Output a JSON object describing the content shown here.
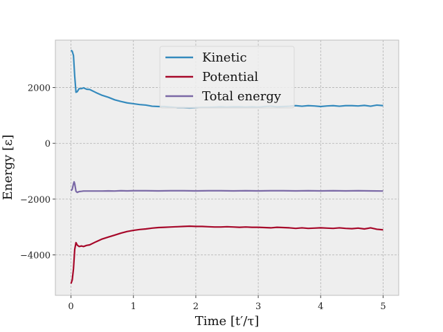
{
  "chart_data": {
    "type": "line",
    "title": "",
    "xlabel": "Time [t′/τ]",
    "ylabel": "Energy [ε]",
    "xlim": [
      -0.25,
      5.25
    ],
    "ylim": [
      -5450,
      3700
    ],
    "xticks": [
      0,
      1,
      2,
      3,
      4,
      5
    ],
    "xtick_labels": [
      "0",
      "1",
      "2",
      "3",
      "4",
      "5"
    ],
    "yticks": [
      -4000,
      -2000,
      0,
      2000
    ],
    "ytick_labels": [
      "−4000",
      "−2000",
      "0",
      "2000"
    ],
    "grid": true,
    "legend_position": "top-center",
    "background_color": "#eeeeee",
    "series": [
      {
        "name": "Kinetic",
        "color": "#348abd",
        "points": [
          [
            0,
            3340
          ],
          [
            0.02,
            3300
          ],
          [
            0.04,
            3150
          ],
          [
            0.06,
            2400
          ],
          [
            0.08,
            1830
          ],
          [
            0.1,
            1850
          ],
          [
            0.13,
            1960
          ],
          [
            0.17,
            1960
          ],
          [
            0.2,
            1990
          ],
          [
            0.25,
            1940
          ],
          [
            0.3,
            1930
          ],
          [
            0.4,
            1820
          ],
          [
            0.5,
            1720
          ],
          [
            0.6,
            1650
          ],
          [
            0.7,
            1560
          ],
          [
            0.8,
            1500
          ],
          [
            0.9,
            1450
          ],
          [
            1.0,
            1420
          ],
          [
            1.1,
            1390
          ],
          [
            1.2,
            1370
          ],
          [
            1.3,
            1330
          ],
          [
            1.4,
            1320
          ],
          [
            1.5,
            1320
          ],
          [
            1.6,
            1300
          ],
          [
            1.7,
            1280
          ],
          [
            1.8,
            1280
          ],
          [
            1.9,
            1270
          ],
          [
            2.0,
            1280
          ],
          [
            2.1,
            1290
          ],
          [
            2.2,
            1290
          ],
          [
            2.3,
            1300
          ],
          [
            2.4,
            1310
          ],
          [
            2.5,
            1300
          ],
          [
            2.6,
            1310
          ],
          [
            2.7,
            1310
          ],
          [
            2.8,
            1300
          ],
          [
            2.9,
            1310
          ],
          [
            3.0,
            1300
          ],
          [
            3.1,
            1320
          ],
          [
            3.2,
            1330
          ],
          [
            3.3,
            1310
          ],
          [
            3.4,
            1320
          ],
          [
            3.5,
            1330
          ],
          [
            3.6,
            1350
          ],
          [
            3.7,
            1330
          ],
          [
            3.8,
            1350
          ],
          [
            3.9,
            1340
          ],
          [
            4.0,
            1320
          ],
          [
            4.1,
            1340
          ],
          [
            4.2,
            1350
          ],
          [
            4.3,
            1330
          ],
          [
            4.4,
            1350
          ],
          [
            4.5,
            1350
          ],
          [
            4.6,
            1340
          ],
          [
            4.7,
            1360
          ],
          [
            4.8,
            1330
          ],
          [
            4.9,
            1370
          ],
          [
            5.0,
            1350
          ]
        ]
      },
      {
        "name": "Potential",
        "color": "#a60628",
        "points": [
          [
            0,
            -5030
          ],
          [
            0.02,
            -4900
          ],
          [
            0.04,
            -4500
          ],
          [
            0.06,
            -3800
          ],
          [
            0.08,
            -3560
          ],
          [
            0.1,
            -3650
          ],
          [
            0.13,
            -3700
          ],
          [
            0.17,
            -3680
          ],
          [
            0.2,
            -3700
          ],
          [
            0.25,
            -3660
          ],
          [
            0.3,
            -3640
          ],
          [
            0.4,
            -3530
          ],
          [
            0.5,
            -3430
          ],
          [
            0.6,
            -3360
          ],
          [
            0.7,
            -3290
          ],
          [
            0.8,
            -3220
          ],
          [
            0.9,
            -3160
          ],
          [
            1.0,
            -3120
          ],
          [
            1.1,
            -3090
          ],
          [
            1.2,
            -3070
          ],
          [
            1.3,
            -3040
          ],
          [
            1.4,
            -3020
          ],
          [
            1.5,
            -3010
          ],
          [
            1.6,
            -3000
          ],
          [
            1.7,
            -2990
          ],
          [
            1.8,
            -2980
          ],
          [
            1.9,
            -2970
          ],
          [
            2.0,
            -2980
          ],
          [
            2.1,
            -2980
          ],
          [
            2.2,
            -2990
          ],
          [
            2.3,
            -3000
          ],
          [
            2.4,
            -3000
          ],
          [
            2.5,
            -2990
          ],
          [
            2.6,
            -3000
          ],
          [
            2.7,
            -3010
          ],
          [
            2.8,
            -3000
          ],
          [
            2.9,
            -3010
          ],
          [
            3.0,
            -3010
          ],
          [
            3.1,
            -3020
          ],
          [
            3.2,
            -3030
          ],
          [
            3.3,
            -3010
          ],
          [
            3.4,
            -3020
          ],
          [
            3.5,
            -3030
          ],
          [
            3.6,
            -3050
          ],
          [
            3.7,
            -3030
          ],
          [
            3.8,
            -3050
          ],
          [
            3.9,
            -3040
          ],
          [
            4.0,
            -3030
          ],
          [
            4.1,
            -3040
          ],
          [
            4.2,
            -3050
          ],
          [
            4.3,
            -3030
          ],
          [
            4.4,
            -3050
          ],
          [
            4.5,
            -3060
          ],
          [
            4.6,
            -3040
          ],
          [
            4.7,
            -3070
          ],
          [
            4.8,
            -3030
          ],
          [
            4.9,
            -3080
          ],
          [
            5.0,
            -3100
          ]
        ]
      },
      {
        "name": "Total energy",
        "color": "#7a68a6",
        "points": [
          [
            0,
            -1700
          ],
          [
            0.02,
            -1650
          ],
          [
            0.04,
            -1450
          ],
          [
            0.05,
            -1380
          ],
          [
            0.06,
            -1450
          ],
          [
            0.08,
            -1720
          ],
          [
            0.1,
            -1760
          ],
          [
            0.13,
            -1730
          ],
          [
            0.17,
            -1720
          ],
          [
            0.2,
            -1710
          ],
          [
            0.3,
            -1710
          ],
          [
            0.4,
            -1710
          ],
          [
            0.5,
            -1710
          ],
          [
            0.6,
            -1705
          ],
          [
            0.7,
            -1710
          ],
          [
            0.8,
            -1700
          ],
          [
            0.9,
            -1705
          ],
          [
            1.0,
            -1700
          ],
          [
            1.2,
            -1700
          ],
          [
            1.4,
            -1705
          ],
          [
            1.6,
            -1700
          ],
          [
            1.8,
            -1700
          ],
          [
            2.0,
            -1705
          ],
          [
            2.2,
            -1700
          ],
          [
            2.4,
            -1700
          ],
          [
            2.6,
            -1705
          ],
          [
            2.8,
            -1700
          ],
          [
            3.0,
            -1705
          ],
          [
            3.2,
            -1700
          ],
          [
            3.4,
            -1700
          ],
          [
            3.6,
            -1705
          ],
          [
            3.8,
            -1700
          ],
          [
            4.0,
            -1705
          ],
          [
            4.2,
            -1700
          ],
          [
            4.4,
            -1705
          ],
          [
            4.6,
            -1700
          ],
          [
            4.8,
            -1705
          ],
          [
            5.0,
            -1710
          ]
        ]
      }
    ]
  }
}
